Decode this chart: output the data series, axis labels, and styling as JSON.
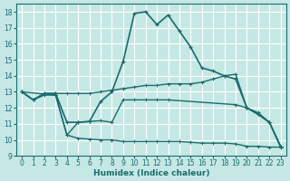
{
  "xlabel": "Humidex (Indice chaleur)",
  "bg_color": "#c5e8e5",
  "grid_color": "#ffffff",
  "line_color": "#1a6b6b",
  "xlim": [
    -0.5,
    23.5
  ],
  "ylim": [
    9,
    18.5
  ],
  "yticks": [
    9,
    10,
    11,
    12,
    13,
    14,
    15,
    16,
    17,
    18
  ],
  "xticks": [
    0,
    1,
    2,
    3,
    4,
    5,
    6,
    7,
    8,
    9,
    10,
    11,
    12,
    13,
    14,
    15,
    16,
    17,
    18,
    19,
    20,
    21,
    22,
    23
  ],
  "line1_x": [
    0,
    1,
    2,
    3,
    4,
    5,
    6,
    7,
    8,
    9,
    10,
    11,
    12,
    13,
    14,
    15,
    16,
    17,
    18,
    19,
    20,
    21,
    22,
    23
  ],
  "line1_y": [
    13.0,
    12.5,
    12.9,
    12.9,
    11.1,
    11.1,
    11.15,
    12.4,
    13.0,
    14.9,
    17.9,
    18.0,
    17.2,
    17.8,
    16.8,
    15.8,
    14.5,
    14.3,
    14.0,
    13.8,
    12.0,
    11.6,
    11.1,
    9.6
  ],
  "line2_x": [
    0,
    1,
    2,
    3,
    4,
    5,
    6,
    7,
    8,
    9,
    10,
    11,
    12,
    13,
    14,
    15,
    16,
    17,
    18,
    19,
    20,
    21,
    22,
    23
  ],
  "line2_y": [
    13.0,
    12.5,
    12.9,
    12.9,
    12.9,
    12.9,
    12.9,
    13.0,
    13.1,
    13.2,
    13.3,
    13.4,
    13.4,
    13.5,
    13.5,
    13.5,
    13.6,
    13.8,
    14.0,
    14.1,
    12.0,
    11.7,
    11.1,
    9.6
  ],
  "line3_x": [
    0,
    1,
    2,
    3,
    4,
    5,
    6,
    7,
    8,
    9,
    10,
    11,
    12,
    13,
    14,
    15,
    16,
    17,
    18,
    19,
    20,
    21,
    22,
    23
  ],
  "line3_y": [
    13.0,
    12.5,
    12.8,
    12.8,
    10.3,
    10.1,
    10.05,
    10.0,
    10.0,
    9.9,
    9.9,
    9.9,
    9.9,
    9.9,
    9.9,
    9.85,
    9.8,
    9.8,
    9.8,
    9.75,
    9.6,
    9.6,
    9.55,
    9.55
  ],
  "line4_x": [
    0,
    3,
    4,
    5,
    6,
    7,
    8,
    9,
    10,
    11,
    12,
    13,
    19,
    20,
    21,
    22,
    23
  ],
  "line4_y": [
    13.0,
    12.8,
    10.3,
    11.1,
    11.15,
    11.2,
    11.1,
    12.5,
    12.5,
    12.5,
    12.5,
    12.5,
    12.2,
    12.0,
    11.6,
    11.1,
    9.55
  ]
}
